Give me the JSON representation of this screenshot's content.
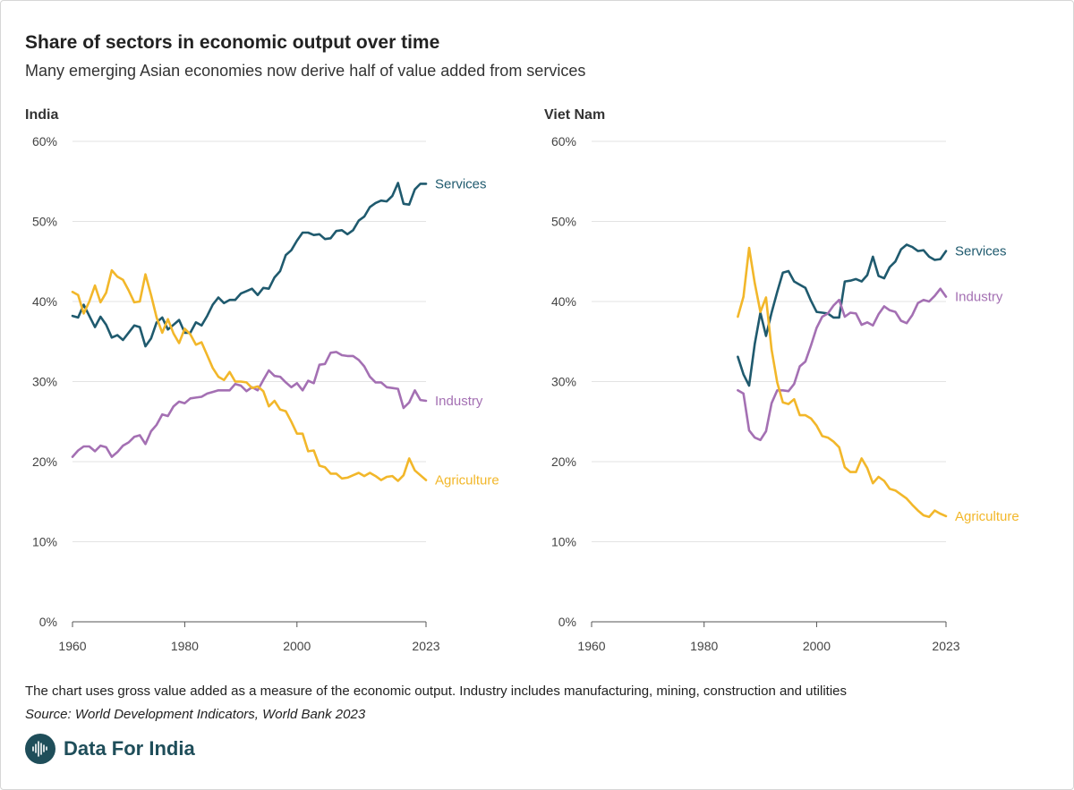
{
  "header": {
    "title": "Share of sectors in economic output over time",
    "subtitle": "Many emerging Asian economies now derive half of value added from services"
  },
  "footer": {
    "note": "The chart uses gross value added as a measure of the economic output. Industry includes manufacturing, mining, construction and utilities",
    "source": "Source: World Development Indicators, World Bank 2023",
    "brand": "Data For India"
  },
  "colors": {
    "Services": "#1f5a6e",
    "Industry": "#a470b3",
    "Agriculture": "#f2b72a",
    "grid": "#e3e3e3",
    "axis": "#555555"
  },
  "chart_data": [
    {
      "type": "line",
      "title": "India",
      "xlabel": "",
      "ylabel": "",
      "xlim": [
        1960,
        2023
      ],
      "ylim": [
        0,
        60
      ],
      "x_ticks": [
        1960,
        1980,
        2000,
        2023
      ],
      "y_ticks": [
        0,
        10,
        20,
        30,
        40,
        50,
        60
      ],
      "y_tick_labels": [
        "0%",
        "10%",
        "20%",
        "30%",
        "40%",
        "50%",
        "60%"
      ],
      "x": [
        1960,
        1961,
        1962,
        1963,
        1964,
        1965,
        1966,
        1967,
        1968,
        1969,
        1970,
        1971,
        1972,
        1973,
        1974,
        1975,
        1976,
        1977,
        1978,
        1979,
        1980,
        1981,
        1982,
        1983,
        1984,
        1985,
        1986,
        1987,
        1988,
        1989,
        1990,
        1991,
        1992,
        1993,
        1994,
        1995,
        1996,
        1997,
        1998,
        1999,
        2000,
        2001,
        2002,
        2003,
        2004,
        2005,
        2006,
        2007,
        2008,
        2009,
        2010,
        2011,
        2012,
        2013,
        2014,
        2015,
        2016,
        2017,
        2018,
        2019,
        2020,
        2021,
        2022,
        2023
      ],
      "series": [
        {
          "name": "Services",
          "values": [
            38.2,
            38.0,
            39.6,
            38.2,
            36.8,
            38.1,
            37.1,
            35.5,
            35.8,
            35.2,
            36.1,
            37.0,
            36.8,
            34.4,
            35.4,
            37.4,
            38.0,
            36.5,
            37.1,
            37.7,
            36.1,
            36.1,
            37.4,
            37.0,
            38.2,
            39.6,
            40.5,
            39.8,
            40.2,
            40.2,
            41.0,
            41.3,
            41.6,
            40.8,
            41.7,
            41.6,
            43.0,
            43.8,
            45.8,
            46.4,
            47.6,
            48.6,
            48.6,
            48.3,
            48.4,
            47.8,
            47.9,
            48.8,
            48.9,
            48.4,
            48.9,
            50.1,
            50.6,
            51.8,
            52.3,
            52.6,
            52.5,
            53.2,
            54.8,
            52.2,
            52.1,
            54.0,
            54.7,
            54.7
          ]
        },
        {
          "name": "Industry",
          "values": [
            20.6,
            21.4,
            21.9,
            21.9,
            21.3,
            22.0,
            21.8,
            20.6,
            21.2,
            22.0,
            22.4,
            23.1,
            23.3,
            22.2,
            23.8,
            24.6,
            25.9,
            25.7,
            26.9,
            27.5,
            27.3,
            27.9,
            28.0,
            28.1,
            28.5,
            28.7,
            28.9,
            28.9,
            28.9,
            29.7,
            29.5,
            28.8,
            29.3,
            28.9,
            30.2,
            31.4,
            30.7,
            30.6,
            29.9,
            29.3,
            29.8,
            28.9,
            30.1,
            29.8,
            32.1,
            32.2,
            33.6,
            33.7,
            33.3,
            33.2,
            33.2,
            32.7,
            31.9,
            30.6,
            29.9,
            29.9,
            29.3,
            29.2,
            29.1,
            26.7,
            27.4,
            28.9,
            27.7,
            27.6
          ]
        },
        {
          "name": "Agriculture",
          "values": [
            41.2,
            40.8,
            38.5,
            40.0,
            42.0,
            39.9,
            41.1,
            43.9,
            43.1,
            42.7,
            41.4,
            39.9,
            40.0,
            43.4,
            40.8,
            38.0,
            36.1,
            37.8,
            36.0,
            34.8,
            36.6,
            35.9,
            34.6,
            34.9,
            33.3,
            31.7,
            30.6,
            30.2,
            31.2,
            30.0,
            30.0,
            29.9,
            29.2,
            29.4,
            28.8,
            26.9,
            27.6,
            26.5,
            26.3,
            25.0,
            23.5,
            23.5,
            21.3,
            21.4,
            19.5,
            19.3,
            18.5,
            18.5,
            17.9,
            18.0,
            18.3,
            18.6,
            18.2,
            18.6,
            18.2,
            17.7,
            18.1,
            18.2,
            17.6,
            18.3,
            20.4,
            18.9,
            18.3,
            17.7
          ]
        }
      ]
    },
    {
      "type": "line",
      "title": "Viet Nam",
      "xlabel": "",
      "ylabel": "",
      "xlim": [
        1960,
        2023
      ],
      "ylim": [
        0,
        60
      ],
      "x_ticks": [
        1960,
        1980,
        2000,
        2023
      ],
      "y_ticks": [
        0,
        10,
        20,
        30,
        40,
        50,
        60
      ],
      "y_tick_labels": [
        "0%",
        "10%",
        "20%",
        "30%",
        "40%",
        "50%",
        "60%"
      ],
      "x": [
        1986,
        1987,
        1988,
        1989,
        1990,
        1991,
        1992,
        1993,
        1994,
        1995,
        1996,
        1997,
        1998,
        1999,
        2000,
        2001,
        2002,
        2003,
        2004,
        2005,
        2006,
        2007,
        2008,
        2009,
        2010,
        2011,
        2012,
        2013,
        2014,
        2015,
        2016,
        2017,
        2018,
        2019,
        2020,
        2021,
        2022,
        2023
      ],
      "series": [
        {
          "name": "Services",
          "values": [
            33.1,
            30.9,
            29.5,
            34.7,
            38.6,
            35.7,
            38.6,
            41.2,
            43.6,
            43.8,
            42.5,
            42.1,
            41.7,
            40.1,
            38.7,
            38.6,
            38.5,
            38.0,
            38.0,
            42.5,
            42.6,
            42.8,
            42.5,
            43.3,
            45.6,
            43.2,
            42.9,
            44.3,
            45.0,
            46.5,
            47.1,
            46.8,
            46.3,
            46.4,
            45.6,
            45.2,
            45.3,
            46.3
          ]
        },
        {
          "name": "Industry",
          "values": [
            28.9,
            28.5,
            23.9,
            23.0,
            22.7,
            23.8,
            27.3,
            28.9,
            28.9,
            28.8,
            29.7,
            31.9,
            32.5,
            34.5,
            36.7,
            38.1,
            38.5,
            39.5,
            40.2,
            38.1,
            38.6,
            38.5,
            37.1,
            37.4,
            37.0,
            38.4,
            39.4,
            38.9,
            38.7,
            37.6,
            37.3,
            38.3,
            39.8,
            40.2,
            40.0,
            40.7,
            41.6,
            40.6
          ]
        },
        {
          "name": "Agriculture",
          "values": [
            38.1,
            40.6,
            46.7,
            42.3,
            38.7,
            40.5,
            34.0,
            29.9,
            27.4,
            27.2,
            27.8,
            25.8,
            25.8,
            25.4,
            24.5,
            23.2,
            23.0,
            22.5,
            21.8,
            19.3,
            18.7,
            18.7,
            20.4,
            19.2,
            17.3,
            18.1,
            17.6,
            16.6,
            16.4,
            15.9,
            15.4,
            14.6,
            13.9,
            13.3,
            13.1,
            13.9,
            13.5,
            13.2
          ]
        }
      ]
    }
  ]
}
